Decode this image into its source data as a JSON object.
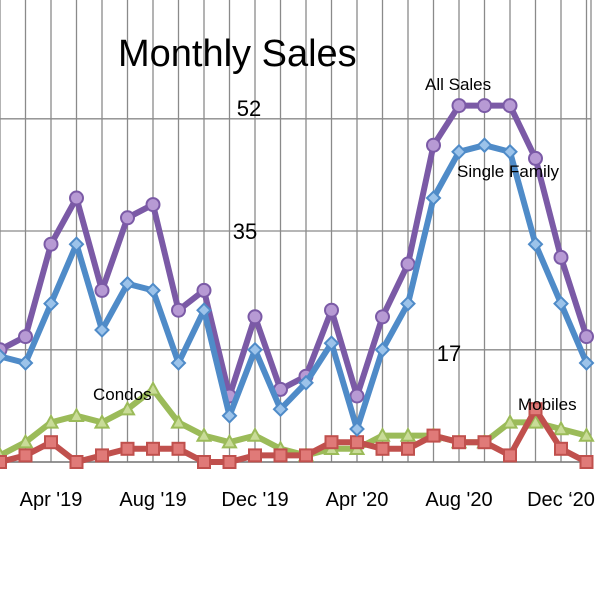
{
  "chart_data": {
    "type": "line",
    "title": "Monthly Sales",
    "xlabel": "",
    "ylabel": "",
    "ylim": [
      0,
      70
    ],
    "grid": true,
    "y_tick_labels": [
      {
        "value": 52,
        "label": "52"
      },
      {
        "value": 35,
        "label": "35"
      },
      {
        "value": 17,
        "label": "17"
      }
    ],
    "x_tick_labels": [
      {
        "index": 2,
        "label": "Apr '19"
      },
      {
        "index": 6,
        "label": "Aug '19"
      },
      {
        "index": 10,
        "label": "Dec '19"
      },
      {
        "index": 14,
        "label": "Apr '20"
      },
      {
        "index": 18,
        "label": "Aug '20"
      },
      {
        "index": 22,
        "label": "Dec ‘20"
      }
    ],
    "series": [
      {
        "name": "All Sales",
        "color": "#7b5aa6",
        "marker": "circle",
        "values": [
          17,
          19,
          33,
          40,
          26,
          37,
          39,
          23,
          26,
          10,
          22,
          11,
          13,
          23,
          10,
          22,
          30,
          48,
          54,
          54,
          54,
          46,
          31,
          19
        ]
      },
      {
        "name": "Single Family",
        "color": "#4f8bc8",
        "marker": "diamond",
        "values": [
          16,
          15,
          24,
          33,
          20,
          27,
          26,
          15,
          23,
          7,
          17,
          8,
          12,
          18,
          5,
          17,
          24,
          40,
          47,
          48,
          47,
          33,
          24,
          15
        ]
      },
      {
        "name": "Condos",
        "color": "#9bbb59",
        "marker": "triangle",
        "values": [
          1,
          3,
          6,
          7,
          6,
          8,
          11,
          6,
          4,
          3,
          4,
          2,
          1,
          2,
          2,
          4,
          4,
          4,
          3,
          3,
          6,
          6,
          5,
          4
        ]
      },
      {
        "name": "Mobiles",
        "color": "#c0504d",
        "marker": "square",
        "values": [
          0,
          1,
          3,
          0,
          1,
          2,
          2,
          2,
          0,
          0,
          1,
          1,
          1,
          3,
          3,
          2,
          2,
          4,
          3,
          3,
          1,
          8,
          2,
          0
        ]
      }
    ]
  }
}
